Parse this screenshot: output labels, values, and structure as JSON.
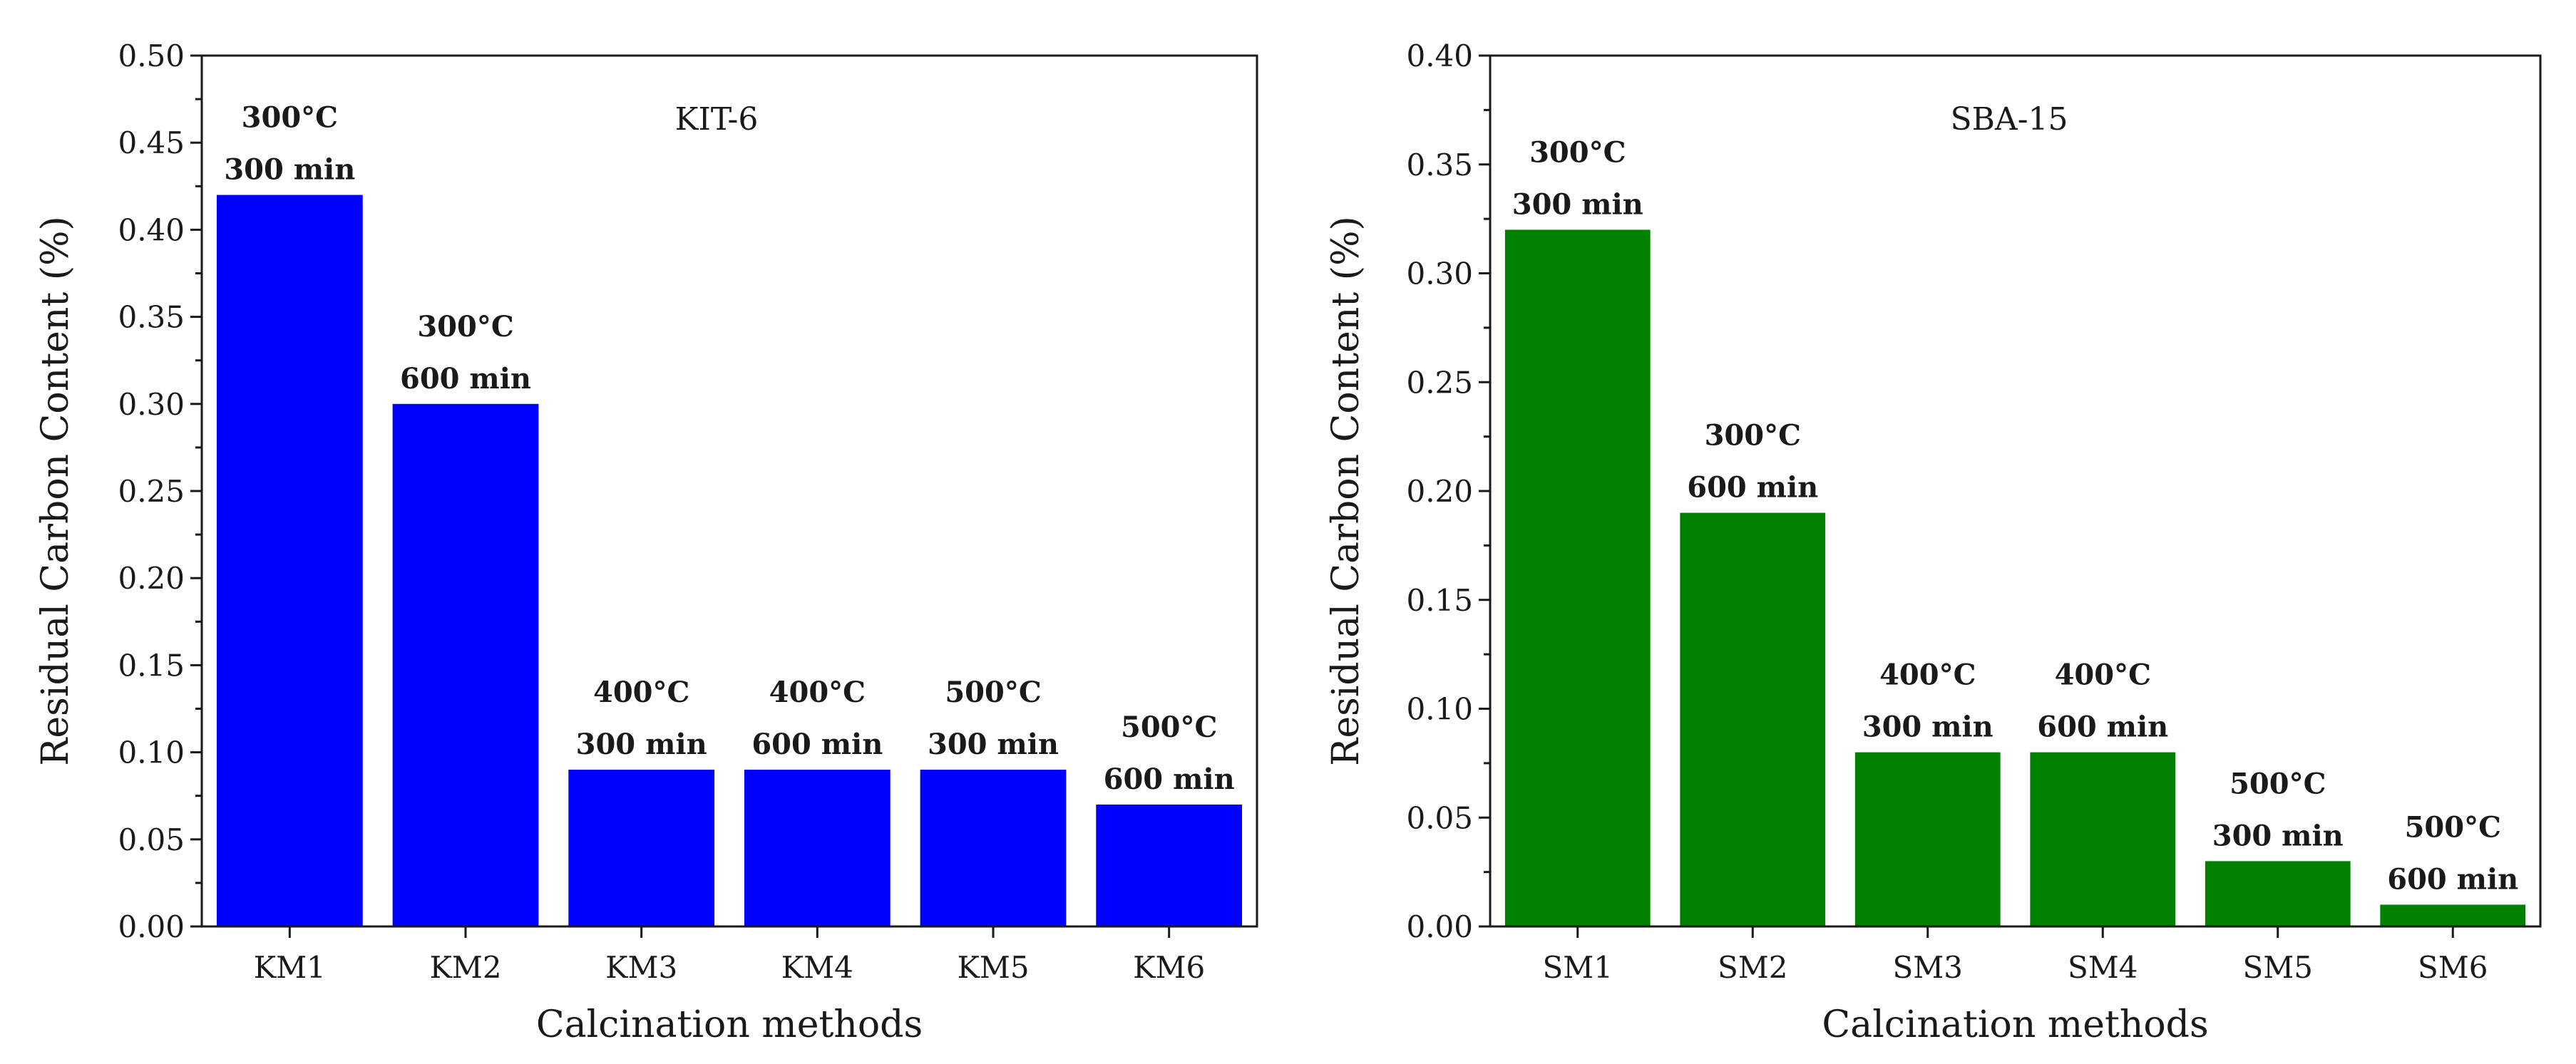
{
  "chart_data": [
    {
      "type": "bar",
      "title": "KIT-6",
      "xlabel": "Calcination methods",
      "ylabel": "Residual Carbon Content (%)",
      "categories": [
        "KM1",
        "KM2",
        "KM3",
        "KM4",
        "KM5",
        "KM6"
      ],
      "values": [
        0.42,
        0.3,
        0.09,
        0.09,
        0.09,
        0.07
      ],
      "annotations": [
        [
          "300°C",
          "300 min"
        ],
        [
          "300°C",
          "600 min"
        ],
        [
          "400°C",
          "300 min"
        ],
        [
          "400°C",
          "600 min"
        ],
        [
          "500°C",
          "300 min"
        ],
        [
          "500°C",
          "600 min"
        ]
      ],
      "ylim": [
        0,
        0.5
      ],
      "yticks": [
        "0.00",
        "0.05",
        "0.10",
        "0.15",
        "0.20",
        "0.25",
        "0.30",
        "0.35",
        "0.40",
        "0.45",
        "0.50"
      ],
      "color": "#0000ff",
      "grid": false,
      "title_placement": "top-right"
    },
    {
      "type": "bar",
      "title": "SBA-15",
      "xlabel": "Calcination methods",
      "ylabel": "Residual Carbon Content (%)",
      "categories": [
        "SM1",
        "SM2",
        "SM3",
        "SM4",
        "SM5",
        "SM6"
      ],
      "values": [
        0.32,
        0.19,
        0.08,
        0.08,
        0.03,
        0.01
      ],
      "annotations": [
        [
          "300°C",
          "300 min"
        ],
        [
          "300°C",
          "600 min"
        ],
        [
          "400°C",
          "300 min"
        ],
        [
          "400°C",
          "600 min"
        ],
        [
          "500°C",
          "300 min"
        ],
        [
          "500°C",
          "600 min"
        ]
      ],
      "ylim": [
        0,
        0.4
      ],
      "yticks": [
        "0.00",
        "0.05",
        "0.10",
        "0.15",
        "0.20",
        "0.25",
        "0.30",
        "0.35",
        "0.40"
      ],
      "color": "#008000",
      "grid": false,
      "title_placement": "top-right"
    }
  ]
}
